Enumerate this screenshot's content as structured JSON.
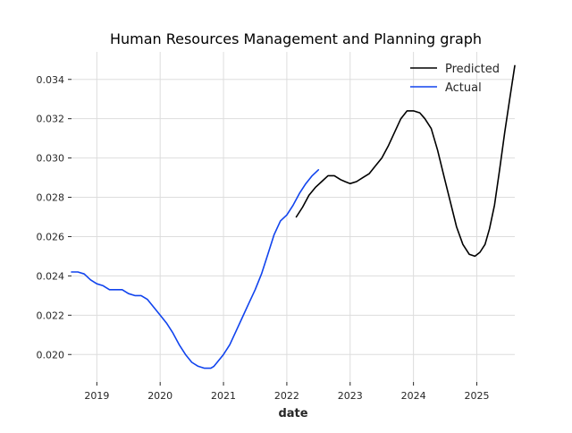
{
  "chart_data": {
    "type": "line",
    "title": "Human Resources Management and Planning graph",
    "xlabel": "date",
    "ylabel": "",
    "x_ticks": [
      "2019",
      "2020",
      "2021",
      "2022",
      "2023",
      "2024",
      "2025"
    ],
    "y_ticks": [
      "0.020",
      "0.022",
      "0.024",
      "0.026",
      "0.028",
      "0.030",
      "0.032",
      "0.034"
    ],
    "xlim": [
      2018.6,
      2025.6
    ],
    "ylim": [
      0.0186,
      0.0354
    ],
    "grid": true,
    "legend_position": "top-right",
    "series": [
      {
        "name": "Predicted",
        "color": "#000000",
        "x": [
          2022.15,
          2022.25,
          2022.35,
          2022.45,
          2022.55,
          2022.65,
          2022.75,
          2022.85,
          2022.92,
          2023.0,
          2023.1,
          2023.2,
          2023.3,
          2023.4,
          2023.5,
          2023.6,
          2023.7,
          2023.8,
          2023.9,
          2024.0,
          2024.1,
          2024.18,
          2024.28,
          2024.38,
          2024.48,
          2024.58,
          2024.68,
          2024.78,
          2024.88,
          2024.97,
          2025.05,
          2025.13,
          2025.2,
          2025.28,
          2025.36,
          2025.44,
          2025.52,
          2025.6
        ],
        "values": [
          0.027,
          0.0275,
          0.0281,
          0.0285,
          0.0288,
          0.0291,
          0.0291,
          0.0289,
          0.0288,
          0.0287,
          0.0288,
          0.029,
          0.0292,
          0.0296,
          0.03,
          0.0306,
          0.0313,
          0.032,
          0.0324,
          0.0324,
          0.0323,
          0.032,
          0.0315,
          0.0304,
          0.0291,
          0.0278,
          0.0265,
          0.0256,
          0.0251,
          0.025,
          0.0252,
          0.0256,
          0.0264,
          0.0276,
          0.0294,
          0.0313,
          0.033,
          0.0347
        ]
      },
      {
        "name": "Actual",
        "color": "#1144ee",
        "x": [
          2018.6,
          2018.7,
          2018.8,
          2018.9,
          2019.0,
          2019.1,
          2019.2,
          2019.3,
          2019.4,
          2019.5,
          2019.6,
          2019.7,
          2019.8,
          2019.9,
          2020.0,
          2020.1,
          2020.2,
          2020.3,
          2020.4,
          2020.5,
          2020.6,
          2020.7,
          2020.8,
          2020.85,
          2020.9,
          2021.0,
          2021.1,
          2021.2,
          2021.3,
          2021.4,
          2021.5,
          2021.6,
          2021.7,
          2021.8,
          2021.9,
          2022.0,
          2022.1,
          2022.2,
          2022.3,
          2022.4,
          2022.5
        ],
        "values": [
          0.0242,
          0.0242,
          0.0241,
          0.0238,
          0.0236,
          0.0235,
          0.0233,
          0.0233,
          0.0233,
          0.0231,
          0.023,
          0.023,
          0.0228,
          0.0224,
          0.022,
          0.0216,
          0.0211,
          0.0205,
          0.02,
          0.0196,
          0.0194,
          0.0193,
          0.0193,
          0.0194,
          0.0196,
          0.02,
          0.0205,
          0.0212,
          0.0219,
          0.0226,
          0.0233,
          0.0241,
          0.0251,
          0.0261,
          0.0268,
          0.0271,
          0.0276,
          0.0282,
          0.0287,
          0.0291,
          0.0294
        ]
      }
    ]
  }
}
